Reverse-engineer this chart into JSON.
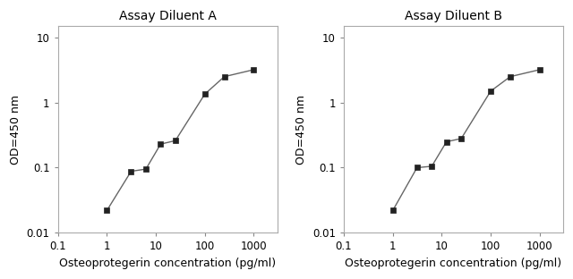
{
  "chart_A": {
    "title": "Assay Diluent A",
    "x": [
      1,
      3.125,
      6.25,
      12.5,
      25,
      100,
      250,
      1000
    ],
    "y": [
      0.022,
      0.088,
      0.095,
      0.23,
      0.26,
      1.35,
      2.5,
      3.2
    ]
  },
  "chart_B": {
    "title": "Assay Diluent B",
    "x": [
      1,
      3.125,
      6.25,
      12.5,
      25,
      100,
      250,
      1000
    ],
    "y": [
      0.022,
      0.1,
      0.105,
      0.25,
      0.28,
      1.5,
      2.5,
      3.2
    ]
  },
  "xlabel": "Osteoprotegerin concentration (pg/ml)",
  "ylabel": "OD=450 nm",
  "xlim": [
    0.1,
    3000
  ],
  "ylim": [
    0.01,
    15
  ],
  "xticks": [
    0.1,
    1,
    10,
    100,
    1000
  ],
  "yticks": [
    0.01,
    0.1,
    1,
    10
  ],
  "xtick_labels": [
    "0.1",
    "1",
    "10",
    "100",
    "1000"
  ],
  "ytick_labels": [
    "0.01",
    "0.1",
    "1",
    "10"
  ],
  "line_color": "#666666",
  "marker_color": "#222222",
  "bg_color": "#ffffff",
  "title_fontsize": 10,
  "label_fontsize": 9,
  "tick_fontsize": 8.5
}
